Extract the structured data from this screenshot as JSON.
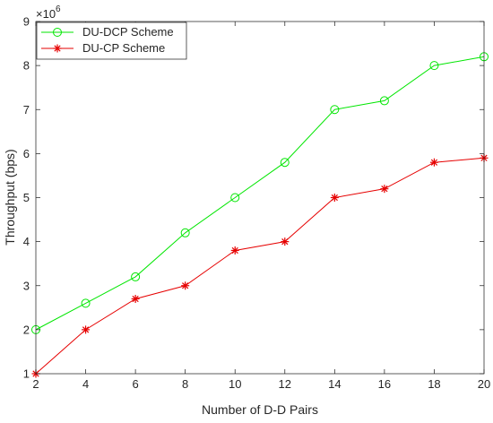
{
  "chart_data": {
    "type": "line",
    "title": "",
    "xlabel": "Number of D-D Pairs",
    "ylabel": "Throughput (bps)",
    "y_exponent_label": "×10",
    "y_exponent_power": "6",
    "x": [
      2,
      4,
      6,
      8,
      10,
      12,
      14,
      16,
      18,
      20
    ],
    "xlim": [
      2,
      20
    ],
    "ylim": [
      1,
      9
    ],
    "y_scale": 1000000,
    "xticks": [
      "2",
      "4",
      "6",
      "8",
      "10",
      "12",
      "14",
      "16",
      "18",
      "20"
    ],
    "yticks": [
      "1",
      "2",
      "3",
      "4",
      "5",
      "6",
      "7",
      "8",
      "9"
    ],
    "grid": false,
    "legend_placement": "top-left",
    "series": [
      {
        "name": "DU-DCP Scheme",
        "color": "#00e600",
        "marker": "circle",
        "values": [
          2.0,
          2.6,
          3.2,
          4.2,
          5.0,
          5.8,
          7.0,
          7.2,
          8.0,
          8.2
        ]
      },
      {
        "name": "DU-CP Scheme",
        "color": "#e60000",
        "marker": "asterisk",
        "values": [
          1.0,
          2.0,
          2.7,
          3.0,
          3.8,
          4.0,
          5.0,
          5.2,
          5.8,
          5.9
        ]
      }
    ]
  }
}
